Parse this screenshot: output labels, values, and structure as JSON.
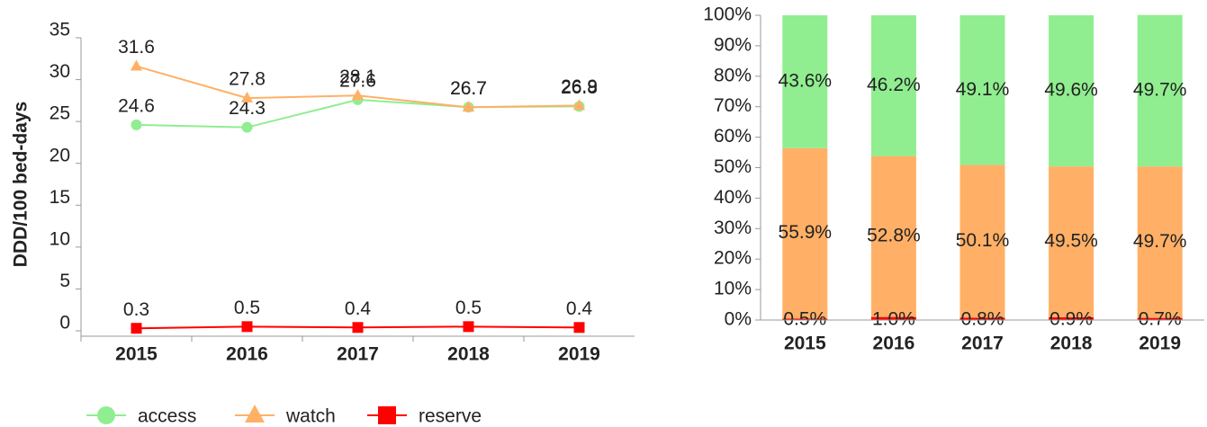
{
  "chart_data": [
    {
      "type": "line",
      "ylabel": "DDD/100 bed-days",
      "categories": [
        "2015",
        "2016",
        "2017",
        "2018",
        "2019"
      ],
      "series": [
        {
          "name": "access",
          "color": "#90ee90",
          "marker": "circle",
          "values": [
            24.6,
            24.3,
            27.6,
            26.7,
            26.8
          ]
        },
        {
          "name": "watch",
          "color": "#ffb066",
          "marker": "triangle",
          "values": [
            31.6,
            27.8,
            28.1,
            26.7,
            26.9
          ]
        },
        {
          "name": "reserve",
          "color": "#ff0000",
          "marker": "square",
          "values": [
            0.3,
            0.5,
            0.4,
            0.5,
            0.4
          ]
        }
      ],
      "ylim": [
        0,
        35
      ],
      "yticks": [
        0,
        5,
        10,
        15,
        20,
        25,
        30,
        35
      ],
      "legend": "bottom"
    },
    {
      "type": "stacked_bar",
      "categories": [
        "2015",
        "2016",
        "2017",
        "2018",
        "2019"
      ],
      "series": [
        {
          "name": "reserve",
          "color": "#ff0000",
          "values": [
            0.5,
            1.0,
            0.8,
            0.9,
            0.7
          ],
          "value_labels": [
            "0.5%",
            "1.0%",
            "0.8%",
            "0.9%",
            "0.7%"
          ]
        },
        {
          "name": "watch",
          "color": "#ffb066",
          "values": [
            55.9,
            52.8,
            50.1,
            49.5,
            49.7
          ],
          "value_labels": [
            "55.9%",
            "52.8%",
            "50.1%",
            "49.5%",
            "49.7%"
          ]
        },
        {
          "name": "access",
          "color": "#90ee90",
          "values": [
            43.6,
            46.2,
            49.1,
            49.6,
            49.7
          ],
          "value_labels": [
            "43.6%",
            "46.2%",
            "49.1%",
            "49.6%",
            "49.7%"
          ]
        }
      ],
      "ylim": [
        0,
        100
      ],
      "yticks": [
        {
          "value": 0,
          "label": "0%"
        },
        {
          "value": 10,
          "label": "10%"
        },
        {
          "value": 20,
          "label": "20%"
        },
        {
          "value": 30,
          "label": "30%"
        },
        {
          "value": 40,
          "label": "40%"
        },
        {
          "value": 50,
          "label": "50%"
        },
        {
          "value": 60,
          "label": "60%"
        },
        {
          "value": 70,
          "label": "70%"
        },
        {
          "value": 80,
          "label": "80%"
        },
        {
          "value": 90,
          "label": "90%"
        },
        {
          "value": 100,
          "label": "100%"
        }
      ]
    }
  ]
}
